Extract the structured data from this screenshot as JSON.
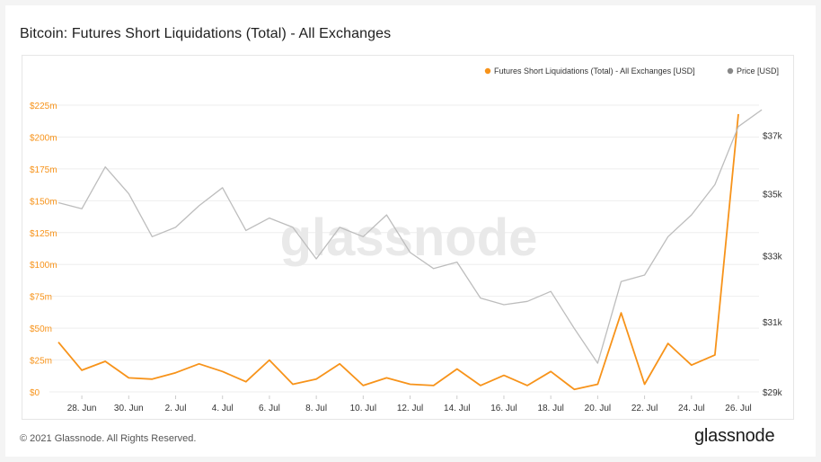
{
  "title": "Bitcoin: Futures Short Liquidations (Total) - All Exchanges",
  "watermark": "glassnode",
  "footer": {
    "copyright": "© 2021 Glassnode. All Rights Reserved.",
    "logo": "glassnode"
  },
  "colors": {
    "liquidations": "#f7931a",
    "price": "#bdbdbd",
    "price_legend_dot": "#888888",
    "grid": "#eeeeee",
    "left_axis_text": "#f7931a",
    "right_axis_text": "#333333"
  },
  "chart_data": {
    "type": "line",
    "title": "Bitcoin: Futures Short Liquidations (Total) - All Exchanges",
    "x_tick_labels": [
      "28. Jun",
      "30. Jun",
      "2. Jul",
      "4. Jul",
      "6. Jul",
      "8. Jul",
      "10. Jul",
      "12. Jul",
      "14. Jul",
      "16. Jul",
      "18. Jul",
      "20. Jul",
      "22. Jul",
      "24. Jul",
      "26. Jul"
    ],
    "x_start_date": "2021-06-27",
    "x_end_date": "2021-07-26",
    "legend_position": "top-right",
    "grid": true,
    "y_left": {
      "label": "Futures Short Liquidations (Total) - All Exchanges [USD]",
      "range": [
        0,
        225000000
      ],
      "ticks": [
        0,
        25000000,
        50000000,
        75000000,
        100000000,
        125000000,
        150000000,
        175000000,
        200000000,
        225000000
      ],
      "tick_labels": [
        "$0",
        "$25m",
        "$50m",
        "$75m",
        "$100m",
        "$125m",
        "$150m",
        "$175m",
        "$200m",
        "$225m"
      ]
    },
    "y_right": {
      "label": "Price [USD]",
      "range": [
        29000,
        38000
      ],
      "ticks": [
        29000,
        31000,
        33000,
        35000,
        37000
      ],
      "tick_labels": [
        "$29k",
        "$31k",
        "$33k",
        "$35k",
        "$37k"
      ],
      "scale": "log"
    },
    "series": [
      {
        "name": "Futures Short Liquidations (Total) - All Exchanges [USD]",
        "axis": "left",
        "color": "#f7931a",
        "points": [
          [
            "2021-06-27",
            39000000
          ],
          [
            "2021-06-28",
            17000000
          ],
          [
            "2021-06-29",
            24000000
          ],
          [
            "2021-06-30",
            11000000
          ],
          [
            "2021-07-01",
            10000000
          ],
          [
            "2021-07-02",
            15000000
          ],
          [
            "2021-07-03",
            22000000
          ],
          [
            "2021-07-04",
            16000000
          ],
          [
            "2021-07-05",
            8000000
          ],
          [
            "2021-07-06",
            25000000
          ],
          [
            "2021-07-07",
            6000000
          ],
          [
            "2021-07-08",
            10000000
          ],
          [
            "2021-07-09",
            22000000
          ],
          [
            "2021-07-10",
            5000000
          ],
          [
            "2021-07-11",
            11000000
          ],
          [
            "2021-07-12",
            6000000
          ],
          [
            "2021-07-13",
            5000000
          ],
          [
            "2021-07-14",
            18000000
          ],
          [
            "2021-07-15",
            5000000
          ],
          [
            "2021-07-16",
            13000000
          ],
          [
            "2021-07-17",
            5000000
          ],
          [
            "2021-07-18",
            16000000
          ],
          [
            "2021-07-19",
            2000000
          ],
          [
            "2021-07-20",
            6000000
          ],
          [
            "2021-07-21",
            62000000
          ],
          [
            "2021-07-22",
            6000000
          ],
          [
            "2021-07-23",
            38000000
          ],
          [
            "2021-07-24",
            21000000
          ],
          [
            "2021-07-25",
            29000000
          ],
          [
            "2021-07-26",
            218000000
          ]
        ]
      },
      {
        "name": "Price [USD]",
        "axis": "right",
        "color": "#bdbdbd",
        "points": [
          [
            "2021-06-27",
            34700
          ],
          [
            "2021-06-28",
            34500
          ],
          [
            "2021-06-29",
            35900
          ],
          [
            "2021-06-30",
            35000
          ],
          [
            "2021-07-01",
            33600
          ],
          [
            "2021-07-02",
            33900
          ],
          [
            "2021-07-03",
            34600
          ],
          [
            "2021-07-04",
            35200
          ],
          [
            "2021-07-05",
            33800
          ],
          [
            "2021-07-06",
            34200
          ],
          [
            "2021-07-07",
            33900
          ],
          [
            "2021-07-08",
            32900
          ],
          [
            "2021-07-09",
            33900
          ],
          [
            "2021-07-10",
            33600
          ],
          [
            "2021-07-11",
            34300
          ],
          [
            "2021-07-12",
            33100
          ],
          [
            "2021-07-13",
            32600
          ],
          [
            "2021-07-14",
            32800
          ],
          [
            "2021-07-15",
            31700
          ],
          [
            "2021-07-16",
            31500
          ],
          [
            "2021-07-17",
            31600
          ],
          [
            "2021-07-18",
            31900
          ],
          [
            "2021-07-19",
            30800
          ],
          [
            "2021-07-20",
            29800
          ],
          [
            "2021-07-21",
            32200
          ],
          [
            "2021-07-22",
            32400
          ],
          [
            "2021-07-23",
            33600
          ],
          [
            "2021-07-24",
            34300
          ],
          [
            "2021-07-25",
            35300
          ],
          [
            "2021-07-26",
            37300
          ],
          [
            "2021-07-27",
            37900
          ]
        ]
      }
    ]
  }
}
